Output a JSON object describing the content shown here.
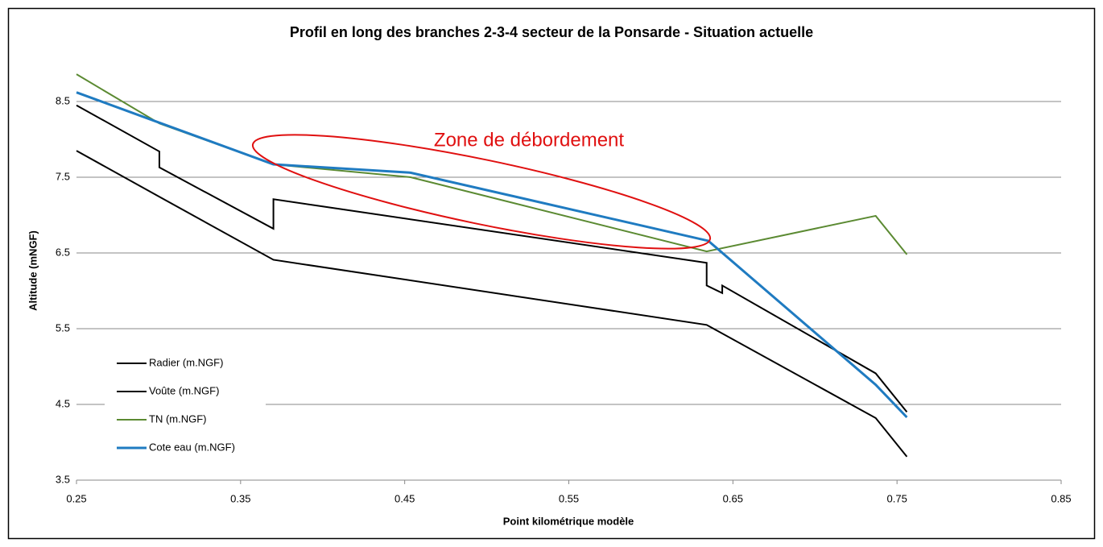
{
  "chart_data": {
    "type": "line",
    "title": "Profil en long des branches 2-3-4 secteur de la Ponsarde - Situation actuelle",
    "xlabel": "Point kilométrique modèle",
    "ylabel": "Altitude (mNGF)",
    "annotation": "Zone de débordement",
    "xlim": [
      0.25,
      0.85
    ],
    "xticks": [
      0.25,
      0.35,
      0.45,
      0.55,
      0.65,
      0.75,
      0.85
    ],
    "ylim": [
      3.5,
      9.0
    ],
    "yticks": [
      3.5,
      4.5,
      5.5,
      6.5,
      7.5,
      8.5
    ],
    "grid": true,
    "legend": "lower left",
    "series": [
      {
        "name": "Radier (m.NGF)",
        "color": "#000000",
        "x": [
          0.25,
          0.3015,
          0.37,
          0.634,
          0.737,
          0.756
        ],
        "values": [
          7.85,
          7.23,
          6.41,
          5.55,
          4.32,
          3.81
        ]
      },
      {
        "name": "Voûte (m.NGF)",
        "color": "#000000",
        "x": [
          0.25,
          0.3005,
          0.3005,
          0.37,
          0.37,
          0.634,
          0.634,
          0.6435,
          0.6435,
          0.737,
          0.756
        ],
        "values": [
          8.45,
          7.84,
          7.63,
          6.82,
          7.21,
          6.37,
          6.07,
          5.97,
          6.07,
          4.91,
          4.4
        ]
      },
      {
        "name": "TN (m.NGF)",
        "color": "#5b8a32",
        "x": [
          0.25,
          0.3005,
          0.37,
          0.4536,
          0.634,
          0.737,
          0.756
        ],
        "values": [
          8.86,
          8.21,
          7.67,
          7.5,
          6.52,
          6.99,
          6.48
        ]
      },
      {
        "name": "Cote eau (m.NGF)",
        "color": "#1f7bc1",
        "x": [
          0.25,
          0.3005,
          0.37,
          0.4536,
          0.635,
          0.737,
          0.756
        ],
        "values": [
          8.62,
          8.22,
          7.67,
          7.56,
          6.66,
          4.76,
          4.33
        ]
      }
    ]
  }
}
